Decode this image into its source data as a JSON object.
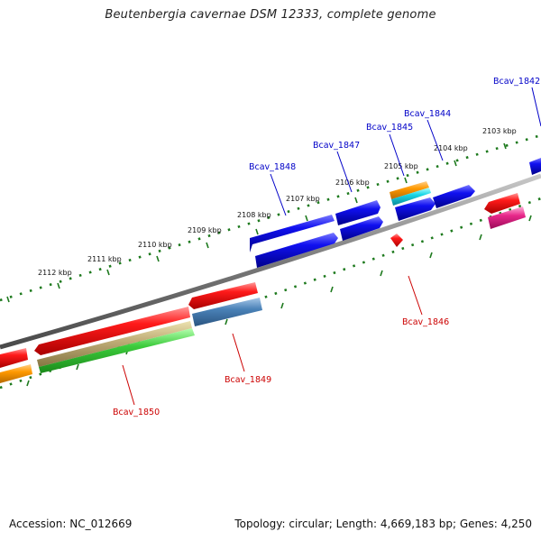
{
  "title": "Beutenbergia cavernae DSM 12333, complete genome",
  "accession": "Accession: NC_012669",
  "topology": "Topology: circular; Length: 4,669,183 bp; Genes: 4,250",
  "colors": {
    "backbone": "#808080",
    "tick": "#1e7a1e",
    "fwd_label": "#0000c8",
    "rev_label": "#cc0000"
  },
  "kbp_labels": [
    "2112 kbp",
    "2111 kbp",
    "2110 kbp",
    "2109 kbp",
    "2108 kbp",
    "2107 kbp",
    "2106 kbp",
    "2105 kbp",
    "2104 kbp",
    "2103 kbp"
  ],
  "gene_labels": [
    {
      "text": "Bcav_1842",
      "strand": "forward"
    },
    {
      "text": "Bcav_1844",
      "strand": "forward"
    },
    {
      "text": "Bcav_1845",
      "strand": "forward"
    },
    {
      "text": "Bcav_1847",
      "strand": "forward"
    },
    {
      "text": "Bcav_1848",
      "strand": "forward"
    },
    {
      "text": "Bcav_1846",
      "strand": "reverse"
    },
    {
      "text": "Bcav_1849",
      "strand": "reverse"
    },
    {
      "text": "Bcav_1850",
      "strand": "reverse"
    }
  ]
}
